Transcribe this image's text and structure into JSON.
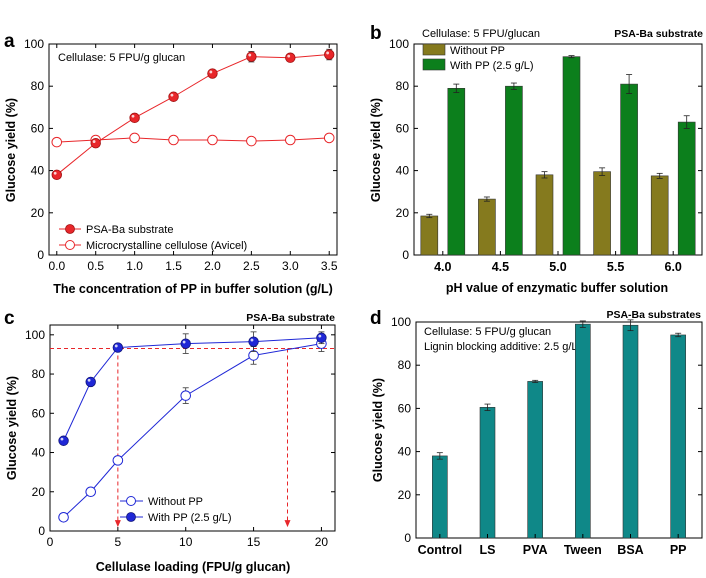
{
  "colors": {
    "red": "#e8262a",
    "olive": "#857a1e",
    "green": "#0c7f1c",
    "blue": "#1f27d6",
    "teal": "#0f8888",
    "darkred_err": "#333333"
  },
  "chart_data": [
    {
      "id": "a",
      "panel_label": "a",
      "type": "line",
      "annotation": "Cellulase: 5 FPU/g glucan",
      "xlabel": "The concentration of PP in buffer solution (g/L)",
      "ylabel": "Glucose yield (%)",
      "xlim": [
        -0.1,
        3.6
      ],
      "ylim": [
        0,
        100
      ],
      "xticks": [
        "0.0",
        "0.5",
        "1.0",
        "1.5",
        "2.0",
        "2.5",
        "3.0",
        "3.5"
      ],
      "yticks": [
        "0",
        "20",
        "40",
        "60",
        "80",
        "100"
      ],
      "series": [
        {
          "name": "PSA-Ba substrate",
          "x": [
            0,
            0.5,
            1,
            1.5,
            2,
            2.5,
            3,
            3.5
          ],
          "values": [
            38,
            53,
            65,
            75,
            86,
            94,
            93.5,
            95
          ],
          "err": [
            0.8,
            0.8,
            1,
            1,
            1,
            2.5,
            1,
            2.5
          ],
          "filled": true
        },
        {
          "name": "Microcrystalline cellulose (Avicel)",
          "x": [
            0,
            0.5,
            1,
            1.5,
            2,
            2.5,
            3,
            3.5
          ],
          "values": [
            53.5,
            54.5,
            55.5,
            54.5,
            54.5,
            54,
            54.5,
            55.5
          ],
          "err": [
            1,
            1,
            1.5,
            1,
            1,
            1.5,
            1,
            1
          ],
          "filled": false
        }
      ]
    },
    {
      "id": "b",
      "panel_label": "b",
      "type": "bar",
      "annotation": "Cellulase: 5 FPU/glucan",
      "annotation_right": "PSA-Ba substrate",
      "xlabel": "pH value of  enzymatic buffer solution",
      "ylabel": "Glucose yield (%)",
      "ylim": [
        0,
        100
      ],
      "yticks": [
        "0",
        "20",
        "40",
        "60",
        "80",
        "100"
      ],
      "categories": [
        "4.0",
        "4.5",
        "5.0",
        "5.5",
        "6.0"
      ],
      "series": [
        {
          "name": "Without PP",
          "values": [
            18.5,
            26.5,
            38,
            39.5,
            37.5
          ],
          "err": [
            0.8,
            1,
            1.5,
            1.8,
            1.2
          ]
        },
        {
          "name": "With PP (2.5 g/L)",
          "values": [
            79,
            80,
            94,
            81,
            63
          ],
          "err": [
            2,
            1.5,
            0.5,
            4.5,
            3
          ]
        }
      ]
    },
    {
      "id": "c",
      "panel_label": "c",
      "type": "line",
      "annotation_right": "PSA-Ba substrate",
      "xlabel": "Cellulase loading (FPU/g glucan)",
      "ylabel": "Glucose yield (%)",
      "xlim": [
        0,
        21
      ],
      "ylim": [
        0,
        105
      ],
      "xticks": [
        "0",
        "5",
        "10",
        "15",
        "20"
      ],
      "yticks": [
        "0",
        "20",
        "40",
        "60",
        "80",
        "100"
      ],
      "reference_level": 93,
      "reference_x": [
        5,
        17.5
      ],
      "series": [
        {
          "name": "Without PP",
          "x": [
            1,
            3,
            5,
            10,
            15,
            20
          ],
          "values": [
            7,
            20,
            36,
            69,
            89.5,
            95.5
          ],
          "err": [
            0.5,
            1,
            1,
            4,
            4.5,
            4
          ],
          "filled": false
        },
        {
          "name": "With PP (2.5 g/L)",
          "x": [
            1,
            3,
            5,
            10,
            15,
            20
          ],
          "values": [
            46,
            76,
            93.5,
            95.5,
            96.5,
            98.5
          ],
          "err": [
            0.8,
            1,
            1,
            5,
            5,
            3
          ],
          "filled": true
        }
      ]
    },
    {
      "id": "d",
      "panel_label": "d",
      "type": "bar",
      "annotation": "Cellulase: 5 FPU/g glucan",
      "annotation2": "Lignin blocking additive: 2.5 g/L",
      "annotation_right": "PSA-Ba substrates",
      "xlabel": "",
      "ylabel": "Glucose yield (%)",
      "ylim": [
        0,
        100
      ],
      "yticks": [
        "0",
        "20",
        "40",
        "60",
        "80",
        "100"
      ],
      "categories": [
        "Control",
        "LS",
        "PVA",
        "Tween",
        "BSA",
        "PP"
      ],
      "series": [
        {
          "name": "Glucose yield",
          "values": [
            38,
            60.5,
            72.5,
            99,
            98.5,
            94
          ],
          "err": [
            1.5,
            1.5,
            0.5,
            1.5,
            2.5,
            0.8
          ]
        }
      ]
    }
  ]
}
